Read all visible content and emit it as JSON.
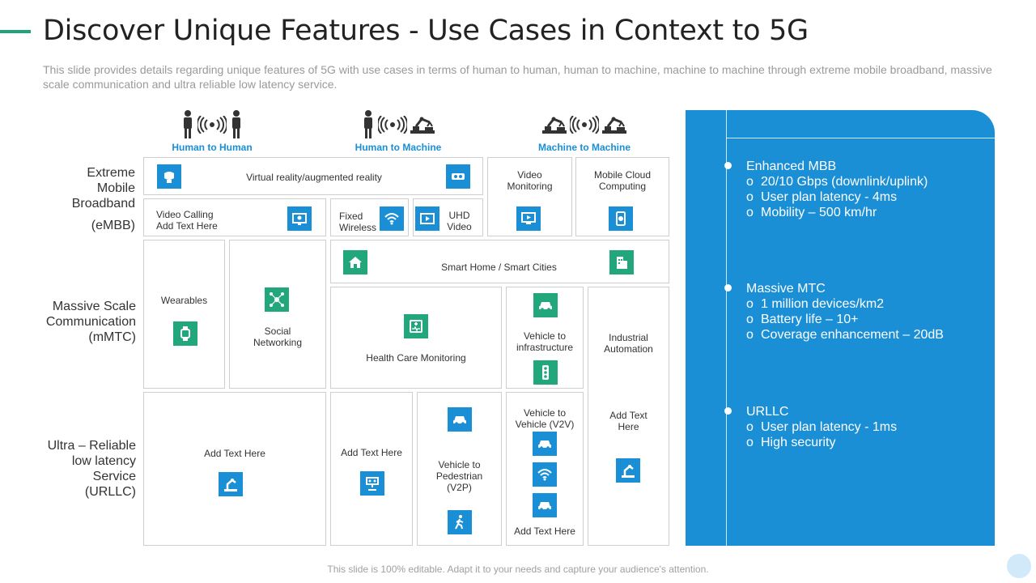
{
  "title": "Discover Unique Features - Use Cases in Context to 5G",
  "subtitle": "This slide provides details regarding unique features of 5G with use cases in terms of human to human, human to machine, machine to machine through extreme mobile broadband, massive scale communication and ultra reliable low latency service.",
  "columns": {
    "h2h": "Human to Human",
    "h2m": "Human to Machine",
    "m2m": "Machine to Machine"
  },
  "rows": {
    "embb": [
      "Extreme",
      "Mobile",
      "Broadband",
      "(eMBB)"
    ],
    "mmtc": [
      "Massive Scale",
      "Communication",
      "(mMTC)"
    ],
    "urllc": [
      "Ultra – Reliable",
      "low latency",
      "Service",
      "(URLLC)"
    ]
  },
  "cells": {
    "vr": "Virtual reality/augmented reality",
    "video_monitoring": [
      "Video",
      "Monitoring"
    ],
    "mobile_cloud": [
      "Mobile Cloud",
      "Computing"
    ],
    "video_calling": [
      "Video Calling",
      "Add Text Here"
    ],
    "fixed_wireless": [
      "Fixed",
      "Wireless"
    ],
    "uhd_video": [
      "UHD",
      "Video"
    ],
    "wearables": "Wearables",
    "social_networking": [
      "Social",
      "Networking"
    ],
    "smart_home": "Smart Home / Smart Cities",
    "health_care": "Health Care Monitoring",
    "v2i": [
      "Vehicle to",
      "infrastructure"
    ],
    "industrial": [
      "Industrial",
      "Automation"
    ],
    "urllc_h2h": "Add Text Here",
    "urllc_h2m": "Add Text Here",
    "v2p": [
      "Vehicle to",
      "Pedestrian",
      "(V2P)"
    ],
    "v2v": [
      "Vehicle to",
      "Vehicle (V2V)"
    ],
    "v2v_add": "Add Text Here",
    "urllc_m2m": [
      "Add Text",
      "Here"
    ]
  },
  "panel": {
    "embb": {
      "head": "Enhanced MBB",
      "items": [
        "20/10 Gbps (downlink/uplink)",
        "User plan latency - 4ms",
        "Mobility – 500 km/hr"
      ]
    },
    "mmtc": {
      "head": "Massive MTC",
      "items": [
        "1 million devices/km2",
        "Battery life – 10+",
        "Coverage enhancement  – 20dB"
      ]
    },
    "urllc": {
      "head": "URLLC",
      "items": [
        "User plan latency - 1ms",
        "High security"
      ]
    }
  },
  "bullet_marker": "o",
  "footer": "This slide is 100% editable. Adapt it to your needs and capture your audience's attention.",
  "colors": {
    "accent_green": "#1fa37a",
    "blue": "#1a8fd6",
    "green_icon": "#22a77d"
  }
}
